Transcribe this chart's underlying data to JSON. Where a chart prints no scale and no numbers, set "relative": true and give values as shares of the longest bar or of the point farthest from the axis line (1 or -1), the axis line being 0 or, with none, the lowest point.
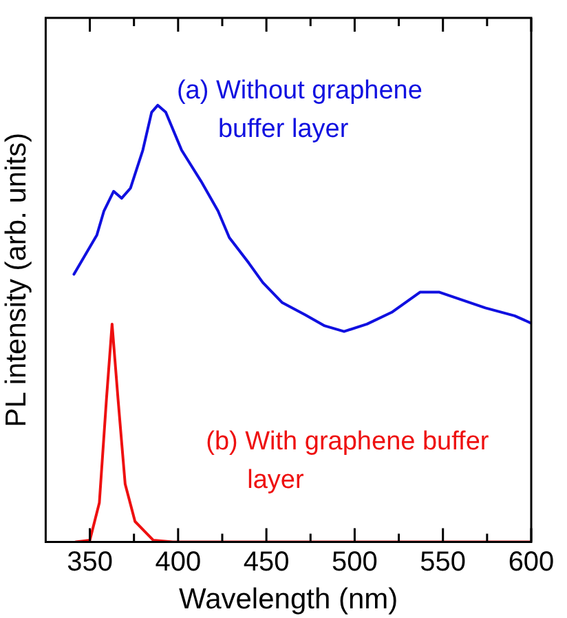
{
  "chart_data": {
    "type": "line",
    "xlabel": "Wavelength (nm)",
    "ylabel": "PL intensity (arb. units)",
    "relative": true,
    "xlim": [
      325,
      600
    ],
    "xticks": [
      350,
      {
        "value": 375,
        "label": null
      },
      400,
      {
        "value": 425,
        "label": null
      },
      450,
      {
        "value": 475,
        "label": null
      },
      500,
      {
        "value": 525,
        "label": null
      },
      550,
      {
        "value": 575,
        "label": null
      },
      600
    ],
    "grid": false,
    "legend": false,
    "marker": "none",
    "line_style": "solid",
    "series": [
      {
        "name": "(a) Without graphene buffer layer",
        "color": "#1010e0",
        "x": [
          341,
          354,
          358,
          363.5,
          368,
          373,
          380,
          385,
          388.5,
          393,
          402,
          413,
          422.6,
          429,
          440,
          448,
          459,
          472,
          483,
          494,
          507,
          521,
          537,
          548,
          558,
          574,
          590.6,
          600
        ],
        "values": [
          0.613,
          0.703,
          0.758,
          0.803,
          0.787,
          0.81,
          0.897,
          0.984,
          1.0,
          0.984,
          0.897,
          0.826,
          0.758,
          0.697,
          0.639,
          0.594,
          0.548,
          0.52,
          0.495,
          0.482,
          0.499,
          0.526,
          0.572,
          0.572,
          0.558,
          0.536,
          0.518,
          0.501
        ]
      },
      {
        "name": "(b) With graphene buffer layer",
        "color": "#ee1010",
        "x": [
          342,
          350,
          355.4,
          359.4,
          362.6,
          366,
          370,
          375.6,
          386,
          397,
          600
        ],
        "values": [
          0,
          0.004,
          0.09,
          0.326,
          0.499,
          0.326,
          0.133,
          0.047,
          0.004,
          0,
          0
        ]
      }
    ]
  }
}
